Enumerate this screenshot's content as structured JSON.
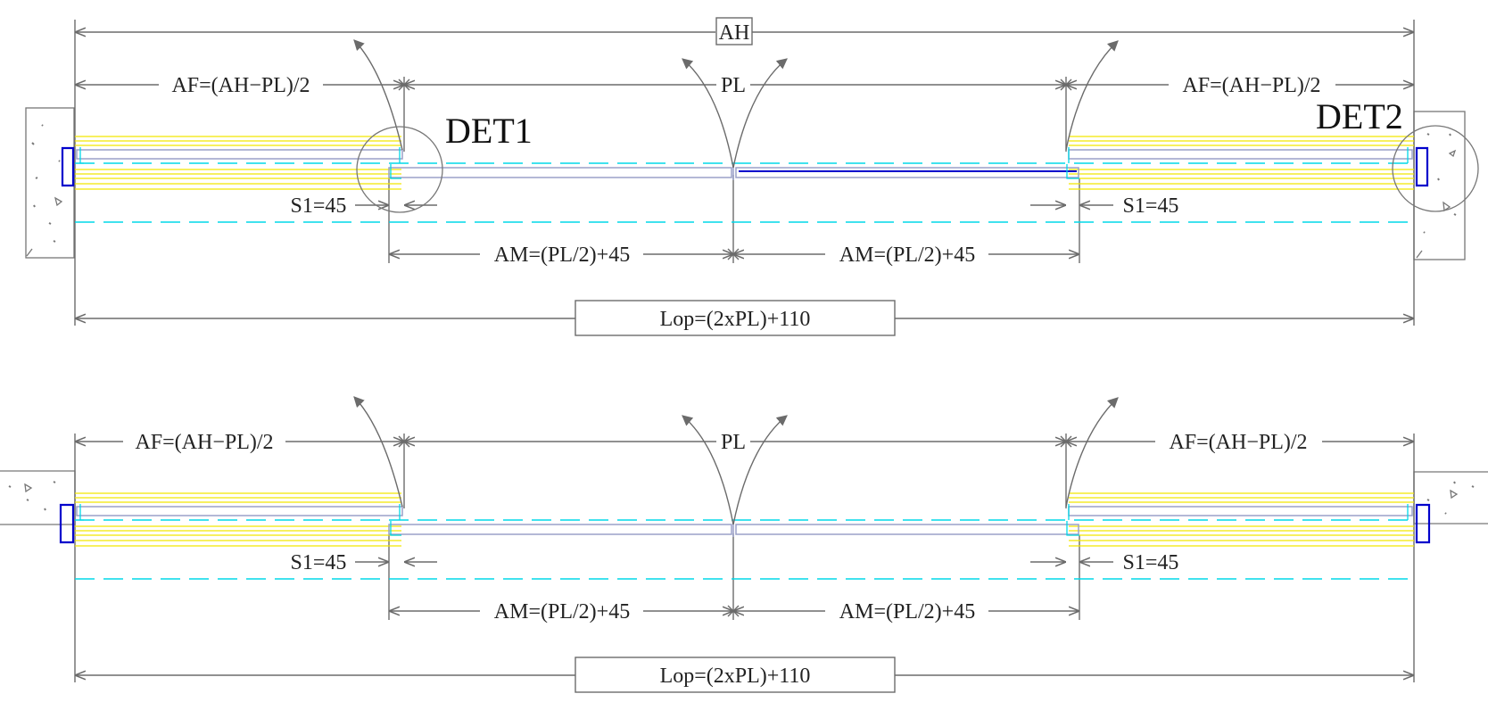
{
  "labels": {
    "ah": "AH",
    "pl": "PL",
    "af": "AF=(AH−PL)/2",
    "s1": "S1=45",
    "am": "AM=(PL/2)+45",
    "lop": "Lop=(2xPL)+110",
    "det1": "DET1",
    "det2": "DET2"
  },
  "colors": {
    "dimension": "#6b6b6b",
    "wall": "#777777",
    "profile": "#0000cc",
    "glass": "#9aa0c8",
    "guide": "#00d8e8",
    "brush": "#f2e600"
  }
}
